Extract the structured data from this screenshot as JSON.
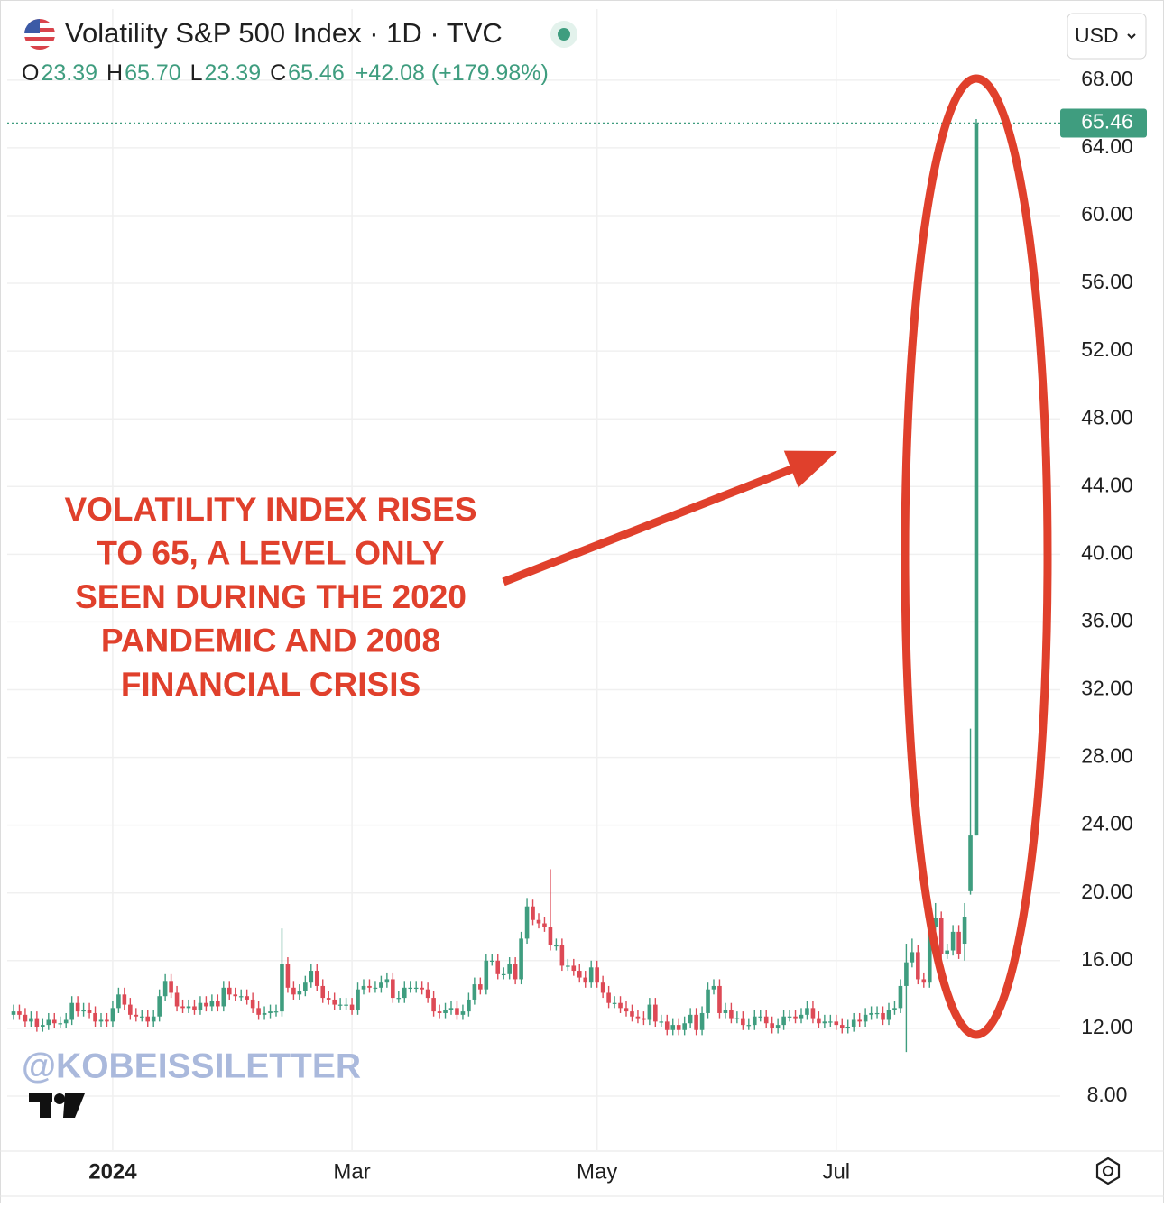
{
  "header": {
    "symbol": "Volatility S&P 500 Index · 1D · TVC",
    "ohlc": [
      [
        "O",
        "23.39"
      ],
      [
        "H",
        "65.70"
      ],
      [
        "L",
        "23.39"
      ],
      [
        "C",
        "65.46"
      ]
    ],
    "change": "+42.08 (+179.98%)",
    "currency": "USD"
  },
  "watermark": "@KOBEISSILETTER",
  "chart_data": {
    "type": "candlestick",
    "annotation": [
      "VOLATILITY INDEX RISES",
      "TO 65, A LEVEL ONLY",
      "SEEN DURING THE 2020",
      "PANDEMIC AND 2008",
      "FINANCIAL CRISIS"
    ],
    "up_color": "#3f9d7f",
    "down_color": "#dd4a56",
    "grid": true,
    "ylim": [
      4.8,
      72.2
    ],
    "yticks": [
      {
        "value": 8,
        "label": "8.00"
      },
      {
        "value": 12,
        "label": "12.00"
      },
      {
        "value": 16,
        "label": "16.00"
      },
      {
        "value": 20,
        "label": "20.00"
      },
      {
        "value": 24,
        "label": "24.00"
      },
      {
        "value": 28,
        "label": "28.00"
      },
      {
        "value": 32,
        "label": "32.00"
      },
      {
        "value": 36,
        "label": "36.00"
      },
      {
        "value": 40,
        "label": "40.00"
      },
      {
        "value": 44,
        "label": "44.00"
      },
      {
        "value": 48,
        "label": "48.00"
      },
      {
        "value": 52,
        "label": "52.00"
      },
      {
        "value": 56,
        "label": "56.00"
      },
      {
        "value": 60,
        "label": "60.00"
      },
      {
        "value": 64,
        "label": "64.00"
      },
      {
        "value": 68,
        "label": "68.00"
      }
    ],
    "categories": [
      null,
      null,
      null,
      null,
      null,
      null,
      null,
      null,
      null,
      null,
      null,
      null,
      null,
      null,
      null,
      null,
      null,
      "2024",
      null,
      null,
      null,
      null,
      null,
      null,
      null,
      null,
      null,
      null,
      null,
      null,
      null,
      null,
      null,
      null,
      null,
      null,
      null,
      null,
      null,
      null,
      null,
      null,
      null,
      null,
      null,
      null,
      null,
      null,
      null,
      null,
      null,
      null,
      null,
      null,
      null,
      null,
      null,
      null,
      "Mar",
      null,
      null,
      null,
      null,
      null,
      null,
      null,
      null,
      null,
      null,
      null,
      null,
      null,
      null,
      null,
      null,
      null,
      null,
      null,
      null,
      null,
      null,
      null,
      null,
      null,
      null,
      null,
      null,
      null,
      null,
      null,
      null,
      null,
      null,
      null,
      null,
      null,
      null,
      null,
      null,
      null,
      "May",
      null,
      null,
      null,
      null,
      null,
      null,
      null,
      null,
      null,
      null,
      null,
      null,
      null,
      null,
      null,
      null,
      null,
      null,
      null,
      null,
      null,
      null,
      null,
      null,
      null,
      null,
      null,
      null,
      null,
      null,
      null,
      null,
      null,
      null,
      null,
      null,
      null,
      null,
      null,
      null,
      "Jul",
      null,
      null,
      null,
      null,
      null,
      null,
      null,
      null,
      null,
      null,
      null,
      null,
      null,
      null,
      null,
      null,
      null,
      null,
      null,
      null,
      null,
      null,
      null,
      null
    ],
    "open": [
      12.8,
      13.0,
      12.8,
      12.4,
      12.6,
      12.1,
      12.2,
      12.5,
      12.3,
      12.3,
      12.5,
      13.5,
      13.0,
      13.1,
      12.9,
      12.4,
      12.5,
      12.4,
      13.2,
      14.0,
      13.4,
      12.8,
      12.7,
      12.7,
      12.4,
      12.7,
      13.9,
      14.8,
      14.1,
      13.3,
      13.2,
      13.3,
      13.1,
      13.5,
      13.3,
      13.6,
      13.3,
      14.4,
      14.0,
      13.9,
      13.9,
      13.7,
      13.2,
      12.8,
      12.9,
      13.0,
      13.0,
      15.8,
      14.4,
      14.0,
      14.2,
      14.7,
      15.4,
      14.5,
      13.8,
      13.7,
      13.4,
      13.4,
      13.4,
      13.1,
      14.3,
      14.5,
      14.4,
      14.4,
      14.7,
      14.9,
      13.8,
      13.8,
      14.4,
      14.4,
      14.4,
      14.3,
      13.8,
      13.0,
      12.9,
      13.1,
      13.2,
      12.8,
      13.0,
      13.7,
      14.6,
      14.3,
      16.0,
      16.0,
      15.2,
      15.2,
      15.8,
      14.9,
      17.3,
      19.2,
      18.4,
      18.2,
      18.0,
      16.9,
      16.9,
      15.7,
      15.7,
      15.4,
      15.0,
      14.7,
      15.6,
      14.7,
      14.1,
      13.5,
      13.5,
      13.2,
      13.0,
      12.7,
      12.6,
      12.5,
      13.4,
      12.4,
      12.4,
      11.9,
      12.2,
      11.9,
      12.3,
      12.8,
      11.9,
      12.9,
      14.3,
      14.5,
      12.9,
      13.1,
      12.6,
      12.6,
      12.2,
      12.2,
      12.7,
      12.7,
      12.3,
      12.0,
      12.2,
      12.7,
      12.7,
      12.6,
      12.8,
      13.2,
      12.6,
      12.3,
      12.4,
      12.4,
      12.2,
      12.0,
      12.1,
      12.5,
      12.4,
      12.8,
      12.9,
      12.9,
      12.5,
      13.1,
      13.2,
      14.5,
      15.9,
      16.5,
      14.9,
      14.7,
      18.0,
      18.5,
      16.4,
      16.6,
      17.7,
      17.0,
      20.1,
      23.39
    ],
    "high": [
      13.4,
      13.4,
      13.2,
      13.0,
      13.0,
      12.6,
      12.9,
      12.9,
      12.7,
      12.9,
      13.9,
      13.9,
      13.5,
      13.5,
      13.3,
      12.9,
      12.9,
      13.6,
      14.4,
      14.4,
      13.8,
      13.2,
      13.1,
      13.1,
      13.1,
      14.3,
      15.2,
      15.2,
      14.5,
      13.7,
      13.7,
      13.7,
      13.9,
      13.9,
      14.0,
      14.0,
      14.8,
      14.8,
      14.4,
      14.3,
      14.3,
      14.1,
      13.6,
      13.3,
      13.4,
      13.4,
      17.9,
      16.2,
      14.8,
      14.6,
      15.1,
      15.8,
      15.8,
      14.9,
      14.2,
      14.1,
      13.8,
      13.8,
      13.8,
      14.7,
      14.9,
      14.9,
      14.8,
      15.1,
      15.3,
      15.3,
      14.2,
      14.8,
      14.8,
      14.8,
      14.8,
      14.7,
      14.2,
      13.4,
      13.5,
      13.6,
      13.6,
      13.4,
      14.1,
      15.0,
      15.0,
      16.4,
      16.4,
      16.4,
      15.6,
      16.2,
      16.2,
      17.7,
      19.7,
      19.6,
      18.8,
      18.6,
      21.4,
      17.3,
      17.3,
      16.1,
      16.1,
      15.8,
      15.4,
      16.0,
      16.0,
      15.1,
      14.5,
      13.9,
      13.9,
      13.6,
      13.4,
      13.1,
      13.0,
      13.8,
      13.8,
      12.8,
      12.8,
      12.6,
      12.6,
      12.7,
      13.2,
      13.2,
      13.3,
      14.7,
      14.9,
      14.9,
      13.5,
      13.5,
      13.0,
      13.0,
      12.6,
      13.1,
      13.1,
      13.1,
      12.7,
      12.6,
      13.1,
      13.1,
      13.1,
      13.2,
      13.6,
      13.6,
      13.0,
      12.8,
      12.8,
      12.8,
      12.6,
      12.5,
      12.9,
      12.9,
      13.2,
      13.3,
      13.3,
      13.3,
      13.5,
      13.6,
      14.9,
      17.0,
      17.3,
      16.9,
      15.3,
      18.4,
      19.4,
      18.9,
      17.0,
      18.1,
      18.1,
      19.4,
      29.7,
      65.7
    ],
    "low": [
      12.5,
      12.5,
      12.1,
      12.1,
      11.8,
      11.8,
      11.9,
      12.0,
      12.0,
      12.0,
      12.2,
      12.7,
      12.7,
      12.6,
      12.1,
      12.1,
      12.1,
      12.1,
      12.9,
      13.1,
      12.5,
      12.4,
      12.4,
      12.1,
      12.1,
      12.4,
      13.6,
      13.8,
      13.0,
      12.9,
      12.9,
      12.8,
      12.8,
      13.0,
      13.0,
      13.0,
      13.0,
      13.7,
      13.6,
      13.6,
      13.4,
      12.9,
      12.5,
      12.5,
      12.6,
      12.7,
      12.7,
      14.1,
      13.7,
      13.7,
      13.9,
      14.4,
      14.2,
      13.5,
      13.4,
      13.1,
      13.1,
      13.1,
      12.8,
      12.8,
      14.0,
      14.1,
      14.1,
      14.1,
      14.4,
      13.5,
      13.5,
      13.5,
      14.1,
      14.1,
      14.0,
      13.5,
      12.7,
      12.6,
      12.6,
      12.8,
      12.5,
      12.5,
      12.7,
      13.4,
      14.0,
      14.0,
      15.7,
      14.9,
      14.9,
      14.9,
      14.6,
      14.6,
      17.0,
      18.1,
      17.9,
      17.7,
      16.6,
      16.6,
      15.4,
      15.4,
      15.1,
      14.7,
      14.4,
      14.4,
      14.4,
      13.8,
      13.2,
      13.2,
      12.9,
      12.7,
      12.4,
      12.3,
      12.2,
      12.2,
      12.1,
      12.1,
      11.6,
      11.6,
      11.6,
      11.6,
      12.0,
      11.6,
      11.6,
      12.6,
      14.0,
      12.6,
      12.6,
      12.3,
      12.3,
      11.9,
      11.9,
      11.9,
      12.4,
      12.0,
      11.7,
      11.7,
      11.9,
      12.4,
      12.3,
      12.3,
      12.5,
      12.3,
      12.0,
      12.0,
      12.1,
      11.9,
      11.7,
      11.7,
      11.8,
      12.1,
      12.1,
      12.5,
      12.6,
      12.2,
      12.2,
      12.8,
      12.9,
      10.6,
      15.6,
      14.6,
      14.4,
      14.4,
      17.7,
      16.1,
      16.1,
      16.3,
      16.1,
      16.0,
      19.9,
      23.39
    ],
    "close": [
      13.0,
      12.8,
      12.4,
      12.6,
      12.1,
      12.2,
      12.5,
      12.3,
      12.3,
      12.5,
      13.5,
      13.0,
      13.1,
      12.9,
      12.4,
      12.5,
      12.4,
      13.2,
      14.0,
      13.4,
      12.8,
      12.7,
      12.7,
      12.4,
      12.7,
      13.9,
      14.8,
      14.1,
      13.3,
      13.2,
      13.3,
      13.1,
      13.5,
      13.3,
      13.6,
      13.3,
      14.4,
      14.0,
      13.9,
      13.9,
      13.7,
      13.2,
      12.8,
      12.9,
      13.0,
      13.0,
      15.8,
      14.4,
      14.0,
      14.2,
      14.7,
      15.4,
      14.5,
      13.8,
      13.7,
      13.4,
      13.4,
      13.4,
      13.1,
      14.3,
      14.5,
      14.4,
      14.4,
      14.7,
      14.9,
      13.8,
      13.8,
      14.4,
      14.4,
      14.4,
      14.3,
      13.8,
      13.0,
      12.9,
      13.1,
      13.2,
      12.8,
      13.0,
      13.7,
      14.6,
      14.3,
      16.0,
      16.0,
      15.2,
      15.2,
      15.8,
      14.9,
      17.3,
      19.2,
      18.4,
      18.2,
      18.0,
      16.9,
      16.9,
      15.7,
      15.7,
      15.4,
      15.0,
      14.7,
      15.6,
      14.7,
      14.1,
      13.5,
      13.5,
      13.2,
      13.0,
      12.7,
      12.6,
      12.5,
      13.4,
      12.4,
      12.4,
      11.9,
      12.2,
      11.9,
      12.3,
      12.8,
      11.9,
      12.9,
      14.3,
      14.5,
      12.9,
      13.1,
      12.6,
      12.6,
      12.2,
      12.2,
      12.7,
      12.7,
      12.3,
      12.0,
      12.2,
      12.7,
      12.7,
      12.6,
      12.8,
      13.2,
      12.6,
      12.3,
      12.4,
      12.4,
      12.2,
      12.0,
      12.1,
      12.5,
      12.4,
      12.8,
      12.9,
      12.9,
      12.5,
      13.1,
      13.2,
      14.5,
      15.9,
      16.5,
      14.9,
      14.7,
      18.0,
      18.5,
      16.4,
      16.6,
      17.7,
      16.4,
      18.6,
      23.39,
      65.46
    ]
  }
}
